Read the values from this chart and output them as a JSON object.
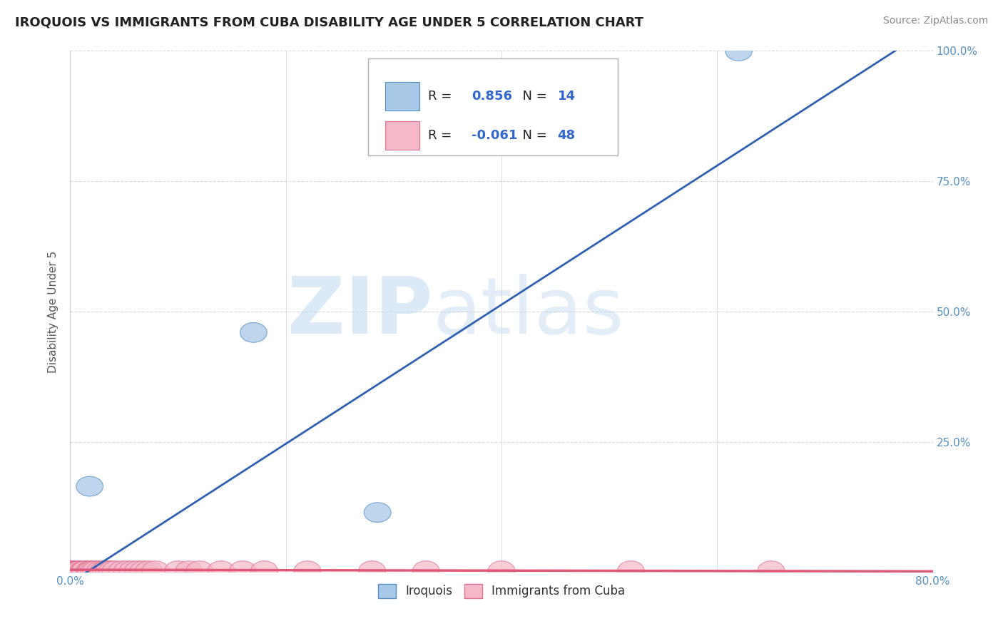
{
  "title": "IROQUOIS VS IMMIGRANTS FROM CUBA DISABILITY AGE UNDER 5 CORRELATION CHART",
  "source": "Source: ZipAtlas.com",
  "ylabel": "Disability Age Under 5",
  "xlim": [
    0.0,
    0.8
  ],
  "ylim": [
    0.0,
    1.0
  ],
  "xtick_positions": [
    0.0,
    0.8
  ],
  "xtick_labels": [
    "0.0%",
    "80.0%"
  ],
  "ytick_positions": [
    0.25,
    0.5,
    0.75,
    1.0
  ],
  "ytick_labels": [
    "25.0%",
    "50.0%",
    "75.0%",
    "100.0%"
  ],
  "grid_yticks": [
    0.0,
    0.25,
    0.5,
    0.75,
    1.0
  ],
  "grid_xticks": [
    0.0,
    0.2,
    0.4,
    0.6,
    0.8
  ],
  "iroquois_x": [
    0.018,
    0.008,
    0.004,
    0.006,
    0.003,
    0.003,
    0.004,
    0.006,
    0.007,
    0.005,
    0.004,
    0.17,
    0.285,
    0.62
  ],
  "iroquois_y": [
    0.165,
    0.003,
    0.003,
    0.003,
    0.003,
    0.003,
    0.003,
    0.003,
    0.003,
    0.003,
    0.003,
    0.46,
    0.115,
    1.0
  ],
  "cuba_x": [
    0.003,
    0.003,
    0.003,
    0.003,
    0.003,
    0.003,
    0.004,
    0.004,
    0.004,
    0.006,
    0.007,
    0.007,
    0.008,
    0.008,
    0.009,
    0.012,
    0.013,
    0.014,
    0.018,
    0.019,
    0.02,
    0.022,
    0.024,
    0.028,
    0.031,
    0.033,
    0.036,
    0.039,
    0.042,
    0.048,
    0.053,
    0.058,
    0.063,
    0.068,
    0.073,
    0.079,
    0.1,
    0.11,
    0.12,
    0.14,
    0.16,
    0.18,
    0.22,
    0.28,
    0.33,
    0.4,
    0.52,
    0.65
  ],
  "cuba_y": [
    0.003,
    0.003,
    0.003,
    0.003,
    0.003,
    0.003,
    0.003,
    0.003,
    0.003,
    0.003,
    0.003,
    0.003,
    0.003,
    0.003,
    0.003,
    0.003,
    0.003,
    0.003,
    0.003,
    0.003,
    0.003,
    0.003,
    0.003,
    0.003,
    0.003,
    0.003,
    0.003,
    0.003,
    0.003,
    0.003,
    0.003,
    0.003,
    0.003,
    0.003,
    0.003,
    0.003,
    0.003,
    0.003,
    0.003,
    0.003,
    0.003,
    0.003,
    0.003,
    0.003,
    0.003,
    0.003,
    0.003,
    0.003
  ],
  "iroquois_color": "#a8c8e8",
  "cuba_color": "#f4b8c8",
  "iroquois_edge": "#5590c0",
  "cuba_edge": "#e07090",
  "blue_line_color": "#3060b0",
  "red_line_color": "#e05878",
  "R_iroquois": 0.856,
  "N_iroquois": 14,
  "R_cuba": -0.061,
  "N_cuba": 48,
  "watermark_zip": "ZIP",
  "watermark_atlas": "atlas",
  "background_color": "#ffffff",
  "grid_color": "#d8d8d8",
  "tick_color": "#5590c0",
  "title_color": "#222222",
  "source_color": "#888888",
  "legend_text_color": "#222222",
  "legend_value_color": "#3366cc"
}
